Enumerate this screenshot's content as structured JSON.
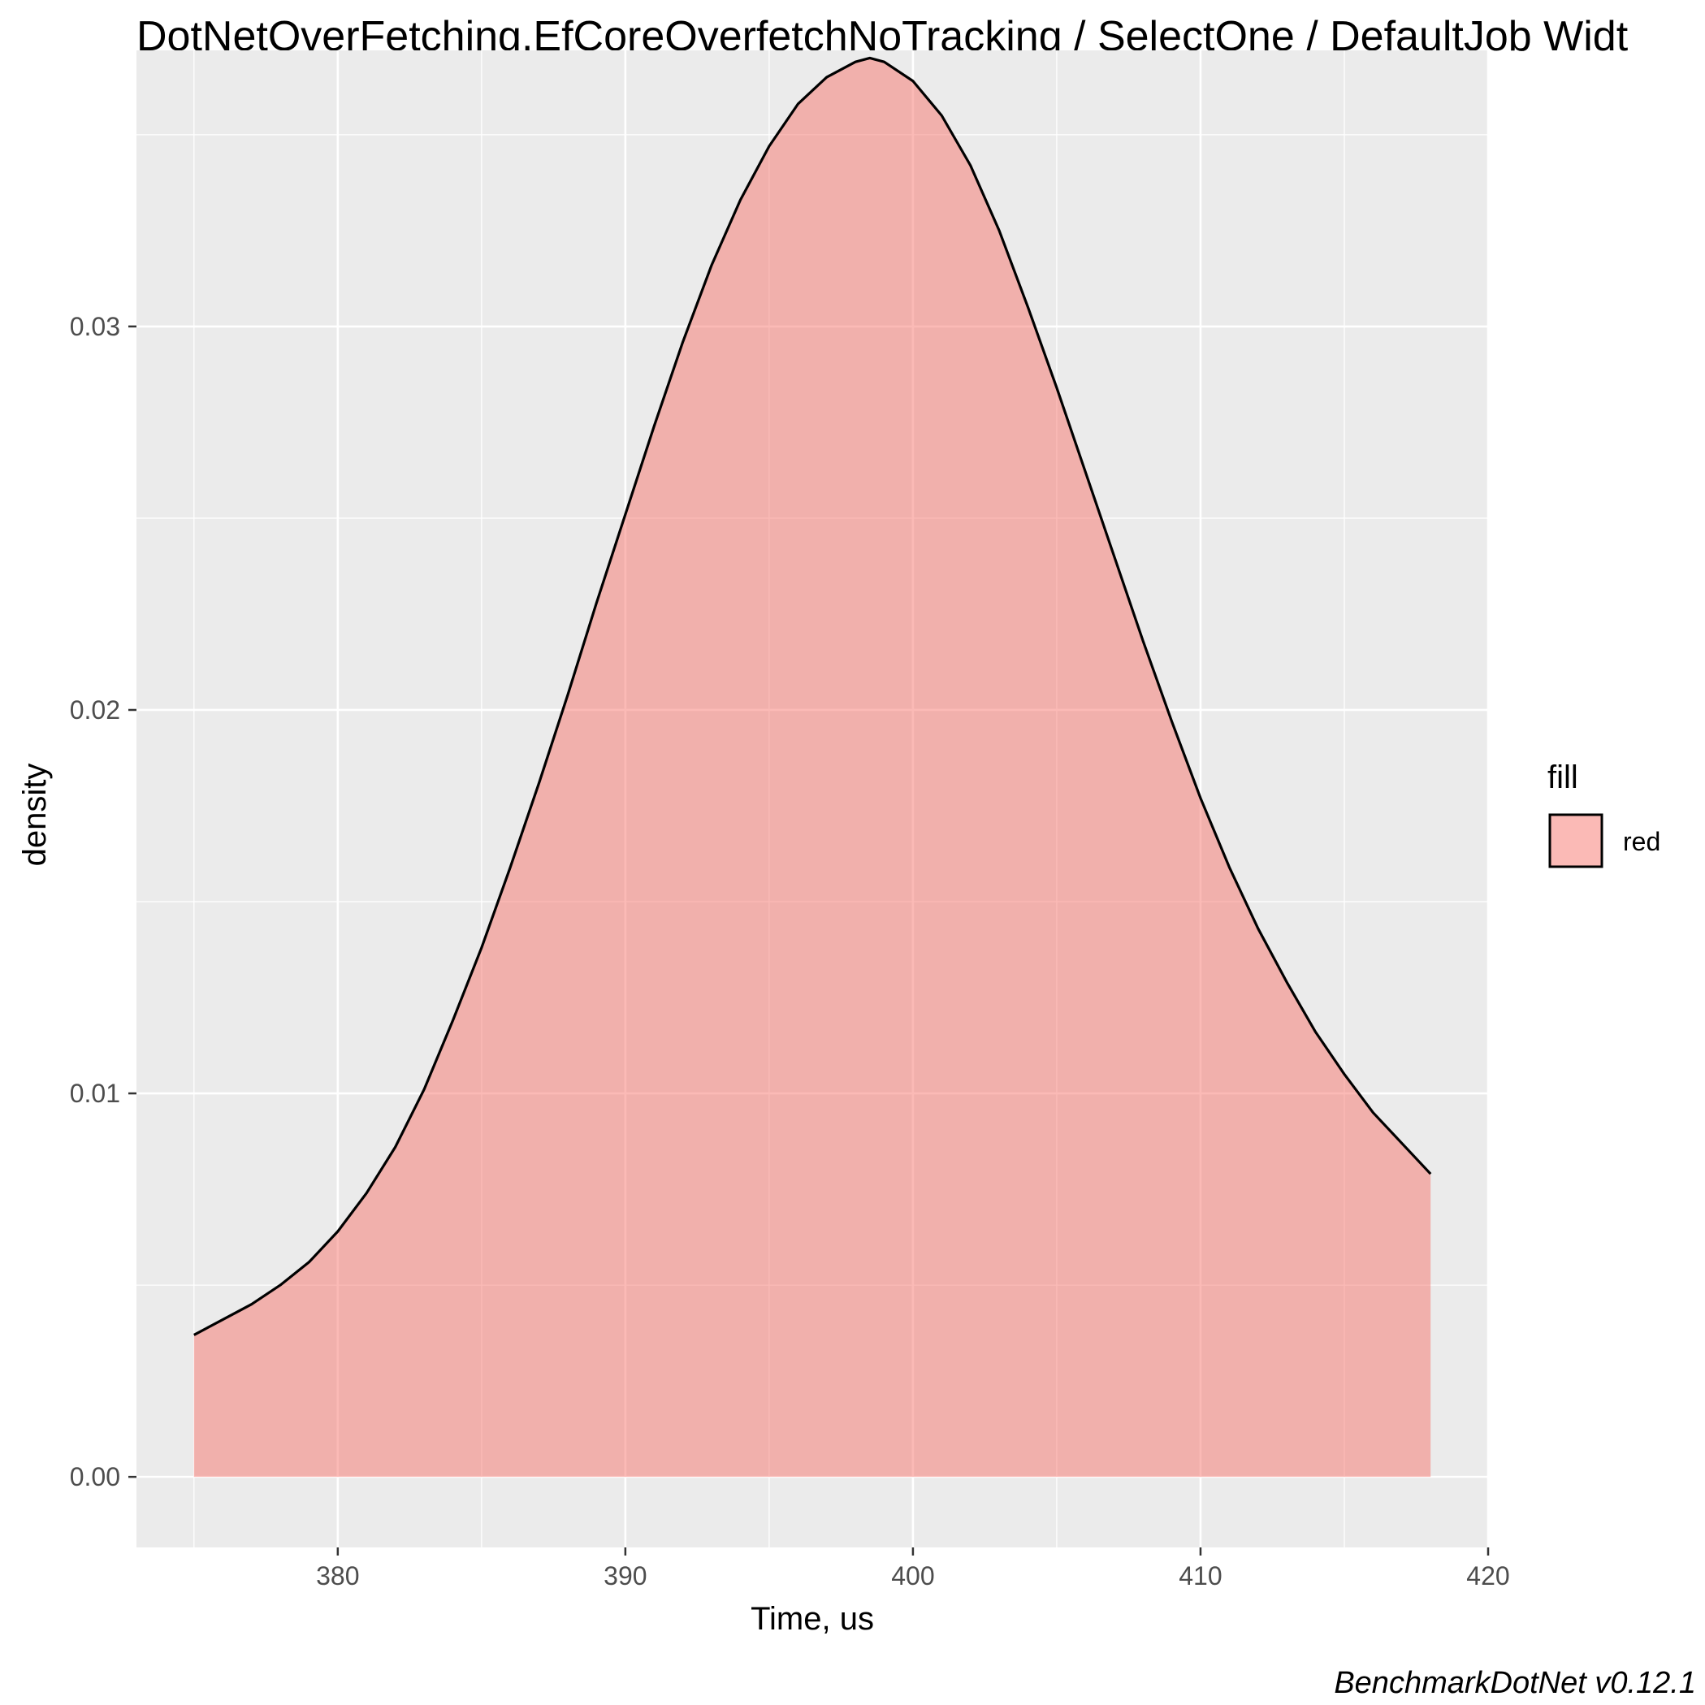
{
  "chart_data": {
    "type": "area",
    "title": "DotNetOverFetching.EfCoreOverfetchNoTracking / SelectOne / DefaultJob Widt",
    "xlabel": "Time, us",
    "ylabel": "density",
    "xlim": [
      373,
      420
    ],
    "ylim": [
      -0.00184,
      0.0372
    ],
    "x_ticks": [
      380,
      390,
      400,
      410,
      420
    ],
    "x_tick_labels": [
      "380",
      "390",
      "400",
      "410",
      "420"
    ],
    "y_ticks": [
      0.0,
      0.01,
      0.02,
      0.03
    ],
    "y_tick_labels": [
      "0.00",
      "0.01",
      "0.02",
      "0.03"
    ],
    "grid": true,
    "legend": {
      "title": "fill",
      "position": "right",
      "entries": [
        "red"
      ]
    },
    "series": [
      {
        "name": "red",
        "fill": "#f8766d",
        "fill_opacity": 0.5,
        "line_color": "#000000",
        "x": [
          375.0,
          376.0,
          377.0,
          378.0,
          379.0,
          380.0,
          381.0,
          382.0,
          383.0,
          384.0,
          385.0,
          386.0,
          387.0,
          388.0,
          389.0,
          390.0,
          391.0,
          392.0,
          393.0,
          394.0,
          395.0,
          396.0,
          397.0,
          398.0,
          398.5,
          399.0,
          400.0,
          401.0,
          402.0,
          403.0,
          404.0,
          405.0,
          406.0,
          407.0,
          408.0,
          409.0,
          410.0,
          411.0,
          412.0,
          413.0,
          414.0,
          415.0,
          416.0,
          417.0,
          418.0
        ],
        "y": [
          0.0037,
          0.0041,
          0.0045,
          0.005,
          0.0056,
          0.0064,
          0.0074,
          0.0086,
          0.0101,
          0.0119,
          0.0138,
          0.0159,
          0.0181,
          0.0204,
          0.0228,
          0.0251,
          0.0274,
          0.0296,
          0.0316,
          0.0333,
          0.0347,
          0.0358,
          0.0365,
          0.0369,
          0.037,
          0.0369,
          0.0364,
          0.0355,
          0.0342,
          0.0325,
          0.0305,
          0.0284,
          0.0262,
          0.024,
          0.0218,
          0.0197,
          0.0177,
          0.0159,
          0.0143,
          0.0129,
          0.0116,
          0.0105,
          0.0095,
          0.0087,
          0.0079
        ]
      }
    ]
  },
  "caption": "BenchmarkDotNet v0.12.1",
  "colors": {
    "panel_background": "#ebebeb",
    "grid_major": "#ffffff",
    "fill": "#f8766d",
    "line": "#000000"
  }
}
